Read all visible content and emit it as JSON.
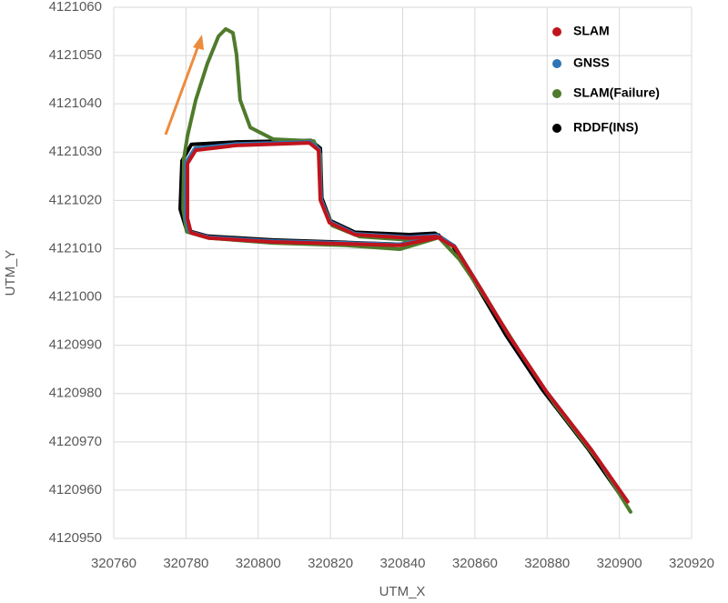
{
  "chart_data": {
    "type": "line",
    "x_label": "UTM_X",
    "y_label": "UTM_Y",
    "xlim": [
      320760,
      320920
    ],
    "xticks": [
      320760,
      320780,
      320800,
      320820,
      320840,
      320860,
      320880,
      320900,
      320920
    ],
    "ylim": [
      4120950,
      4121060
    ],
    "yticks": [
      4120950,
      4120960,
      4120970,
      4120980,
      4120990,
      4121000,
      4121010,
      4121020,
      4121030,
      4121040,
      4121050,
      4121060
    ],
    "grid": true,
    "legend": "upper right",
    "series": [
      {
        "name": "SLAM",
        "color": "#c0141c",
        "x": [
          320850.4,
          320839.3,
          320824.2,
          320804.1,
          320786.4,
          320781.4,
          320780.4,
          320780.4,
          320782.7,
          320794.0,
          320814.2,
          320816.7,
          320817.2,
          320819.7,
          320826.8,
          320841.9,
          320849.4,
          320854.5,
          320862.0,
          320869.6,
          320879.7,
          320892.3,
          320902.3
        ],
        "values": [
          4121012.4,
          4121010.7,
          4121011.0,
          4121011.4,
          4121012.2,
          4121013.3,
          4121016.3,
          4121027.6,
          4121030.4,
          4121031.4,
          4121031.9,
          4121030.4,
          4121020.1,
          4121015.4,
          4121012.9,
          4121012.2,
          4121012.5,
          4121010.3,
          4121001.2,
          4120991.8,
          4120980.5,
          4120968.3,
          4120957.6
        ]
      },
      {
        "name": "GNSS",
        "color": "#2e75b6",
        "x": [
          320850.2,
          320839.3,
          320824.2,
          320804.1,
          320786.2,
          320781.0,
          320779.9,
          320780.0,
          320782.5,
          320794.0,
          320814.4,
          320816.9,
          320817.4,
          320819.8,
          320826.8,
          320841.9,
          320849.5,
          320854.3,
          320861.8,
          320869.3,
          320879.4,
          320892.0,
          320902.0
        ],
        "values": [
          4121012.6,
          4121010.9,
          4121011.2,
          4121011.6,
          4121012.4,
          4121013.5,
          4121016.5,
          4121027.9,
          4121030.8,
          4121031.7,
          4121032.1,
          4121030.6,
          4121020.3,
          4121015.6,
          4121013.1,
          4121012.4,
          4121012.8,
          4121010.6,
          4121001.5,
          4120992.1,
          4120980.8,
          4120968.6,
          4120957.9
        ]
      },
      {
        "name": "SLAM(Failure)",
        "color": "#4f7b2c",
        "x": [
          320850.4,
          320839.3,
          320824.2,
          320804.1,
          320786.4,
          320780.2,
          320779.2,
          320779.4,
          320780.4,
          320782.7,
          320785.9,
          320789.0,
          320791.0,
          320793.0,
          320794.0,
          320795.0,
          320797.8,
          320804.1,
          320815.4,
          320817.2,
          320817.4,
          320820.5,
          320828.1,
          320841.9,
          320849.9,
          320855.7,
          320863.3,
          320872.1,
          320882.2,
          320894.8,
          320903.1
        ],
        "values": [
          4121012.4,
          4121009.9,
          4121010.7,
          4121011.2,
          4121012.2,
          4121013.5,
          4121018.2,
          4121028.6,
          4121033.3,
          4121040.8,
          4121048.3,
          4121054.0,
          4121055.5,
          4121054.7,
          4121050.2,
          4121040.8,
          4121035.1,
          4121032.7,
          4121032.3,
          4121029.5,
          4121020.1,
          4121014.8,
          4121012.5,
          4121011.8,
          4121012.4,
          4121007.8,
          4120999.4,
          4120989.0,
          4120977.7,
          4120965.5,
          4120955.5
        ]
      },
      {
        "name": "RDDF(INS)",
        "color": "#000000",
        "x": [
          320850.0,
          320839.3,
          320824.2,
          320804.1,
          320786.0,
          320780.2,
          320778.4,
          320778.9,
          320781.5,
          320794.0,
          320814.6,
          320817.2,
          320817.6,
          320820.0,
          320826.8,
          320841.9,
          320848.9,
          320853.7,
          320861.2,
          320868.6,
          320878.7,
          320891.3,
          320901.3
        ],
        "values": [
          4121012.8,
          4121010.9,
          4121011.3,
          4121011.8,
          4121012.6,
          4121013.8,
          4121018.2,
          4121028.2,
          4121031.6,
          4121032.1,
          4121032.4,
          4121030.8,
          4121020.5,
          4121015.8,
          4121013.4,
          4121012.9,
          4121013.2,
          4121010.8,
          4121001.5,
          4120992.1,
          4120980.8,
          4120968.6,
          4120957.9
        ]
      }
    ]
  }
}
